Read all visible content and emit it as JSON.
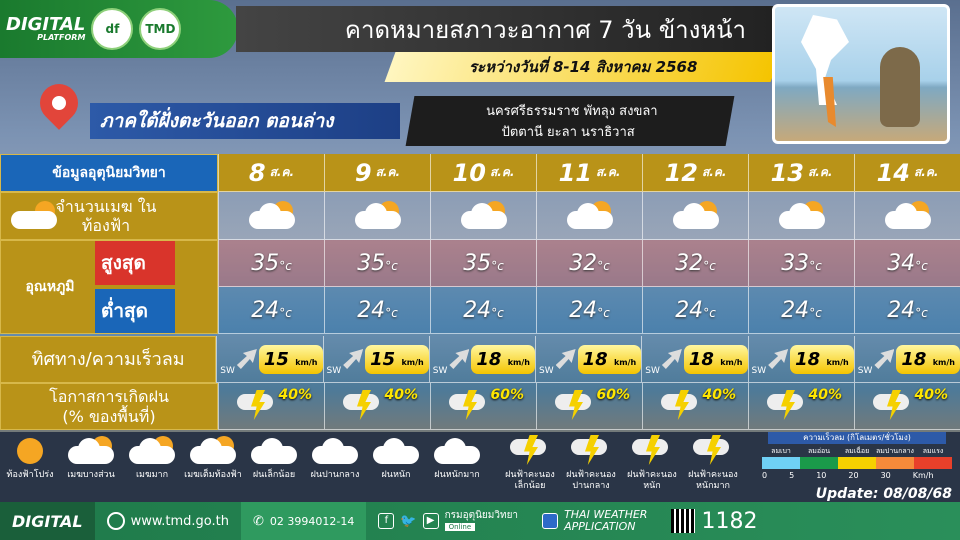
{
  "header": {
    "logo_text": "DIGITAL",
    "logo_sub": "PLATFORM",
    "tmd_logo": "TMD",
    "title": "คาดหมายสภาวะอากาศ 7 วัน ข้างหน้า",
    "date_range": "ระหว่างวันที่ 8-14 สิงหาคม 2568",
    "region": "ภาคใต้ฝั่งตะวันออก ตอนล่าง",
    "provinces_line1": "นครศรีธรรมราช พัทลุง สงขลา",
    "provinces_line2": "ปัตตานี ยะลา นราธิวาส"
  },
  "table": {
    "header_label": "ข้อมูลอุตุนิยมวิทยา",
    "cloud_label": "จำนวนเมฆ ในท้องฟ้า",
    "temp_label": "อุณหภูมิ",
    "high_label": "สูงสุด",
    "low_label": "ต่ำสุด",
    "wind_label": "ทิศทาง/ความเร็วลม",
    "rain_label_1": "โอกาสการเกิดฝน",
    "rain_label_2": "(% ของพื้นที่)",
    "unit_temp": "°c",
    "unit_wind": "km/h",
    "month": "ส.ค.",
    "days": [
      {
        "day": "8",
        "high": "35",
        "low": "24",
        "dir": "SW",
        "wind": "15",
        "rain": "40%"
      },
      {
        "day": "9",
        "high": "35",
        "low": "24",
        "dir": "SW",
        "wind": "15",
        "rain": "40%"
      },
      {
        "day": "10",
        "high": "35",
        "low": "24",
        "dir": "SW",
        "wind": "18",
        "rain": "60%"
      },
      {
        "day": "11",
        "high": "32",
        "low": "24",
        "dir": "SW",
        "wind": "18",
        "rain": "60%"
      },
      {
        "day": "12",
        "high": "32",
        "low": "24",
        "dir": "SW",
        "wind": "18",
        "rain": "40%"
      },
      {
        "day": "13",
        "high": "33",
        "low": "24",
        "dir": "SW",
        "wind": "18",
        "rain": "40%"
      },
      {
        "day": "14",
        "high": "34",
        "low": "24",
        "dir": "SW",
        "wind": "18",
        "rain": "40%"
      }
    ]
  },
  "legend": {
    "items": [
      "ท้องฟ้าโปร่ง",
      "เมฆบางส่วน",
      "เมฆมาก",
      "เมฆเต็มท้องฟ้า",
      "ฝนเล็กน้อย",
      "ฝนปานกลาง",
      "ฝนหนัก",
      "ฝนหนักมาก",
      "ฝนฟ้าคะนอง เล็กน้อย",
      "ฝนฟ้าคะนอง ปานกลาง",
      "ฝนฟ้าคะนอง หนัก",
      "ฝนฟ้าคะนอง หนักมาก"
    ],
    "wind_scale_title": "ความเร็วลม (กิโลเมตร/ชั่วโมง)",
    "wind_scale": [
      {
        "label": "ลมเบา",
        "color": "#6fd0f5"
      },
      {
        "label": "ลมอ่อน",
        "color": "#1a9a4a"
      },
      {
        "label": "ลมเฉื่อย",
        "color": "#f5d000"
      },
      {
        "label": "ลมปานกลาง",
        "color": "#f58a3a"
      },
      {
        "label": "ลมแรง",
        "color": "#e8402a"
      }
    ],
    "wind_ticks": [
      "0",
      "5",
      "10",
      "20",
      "30"
    ],
    "wind_unit": "Km/h",
    "update": "Update: 08/08/68"
  },
  "footer": {
    "logo": "DIGITAL",
    "website": "www.tmd.go.th",
    "phone": "02 3994012-14",
    "social_text": "กรมอุตุนิยมวิทยา",
    "social_sub": "Online",
    "app_line1": "THAI WEATHER",
    "app_line2": "APPLICATION",
    "hotline": "1182"
  }
}
